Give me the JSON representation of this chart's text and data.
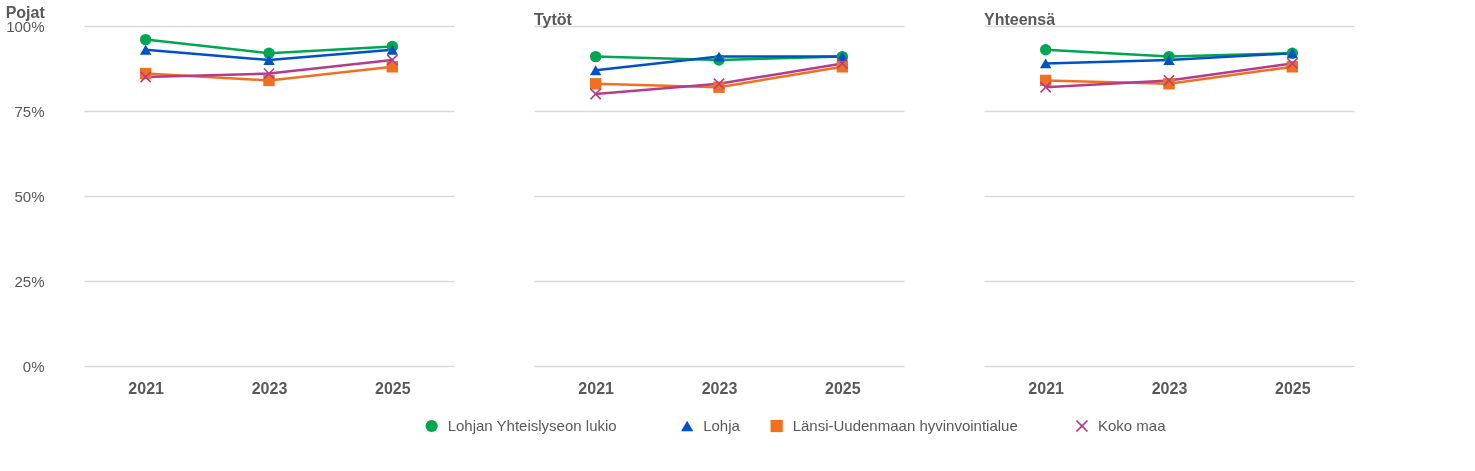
{
  "chart_data": [
    {
      "type": "line",
      "title": "Pojat",
      "categories": [
        "2021",
        "2023",
        "2025"
      ],
      "ylim": [
        0,
        100
      ],
      "yticks": [
        {
          "value": 0,
          "label": "0%"
        },
        {
          "value": 25,
          "label": "25%"
        },
        {
          "value": 50,
          "label": "50%"
        },
        {
          "value": 75,
          "label": "75%"
        },
        {
          "value": 100,
          "label": "100%"
        }
      ],
      "grid": "y",
      "legend": "bottom",
      "series": [
        {
          "name": "Lohjan Yhteislyseon lukio",
          "color": "#00a651",
          "marker": "circle",
          "values": [
            96,
            92,
            94
          ]
        },
        {
          "name": "Lohja",
          "color": "#0050c8",
          "marker": "triangle",
          "values": [
            93,
            90,
            93
          ]
        },
        {
          "name": "Länsi-Uudenmaan hyvinvointialue",
          "color": "#f07020",
          "marker": "square",
          "values": [
            86,
            84,
            88
          ]
        },
        {
          "name": "Koko maa",
          "color": "#b43c8c",
          "marker": "cross",
          "values": [
            85,
            86,
            90
          ]
        }
      ]
    },
    {
      "type": "line",
      "title": "Tytöt",
      "categories": [
        "2021",
        "2023",
        "2025"
      ],
      "ylim": [
        0,
        100
      ],
      "yticks": [
        0,
        25,
        50,
        75,
        100
      ],
      "grid": "y",
      "tick_labels": "x",
      "series": [
        {
          "name": "Lohjan Yhteislyseon lukio",
          "color": "#00a651",
          "marker": "circle",
          "values": [
            91,
            90,
            91
          ]
        },
        {
          "name": "Lohja",
          "color": "#0050c8",
          "marker": "triangle",
          "values": [
            87,
            91,
            91
          ]
        },
        {
          "name": "Länsi-Uudenmaan hyvinvointialue",
          "color": "#f07020",
          "marker": "square",
          "values": [
            83,
            82,
            88
          ]
        },
        {
          "name": "Koko maa",
          "color": "#b43c8c",
          "marker": "cross",
          "values": [
            80,
            83,
            89
          ]
        }
      ]
    },
    {
      "type": "line",
      "title": "Yhteensä",
      "categories": [
        "2021",
        "2023",
        "2025"
      ],
      "ylim": [
        0,
        100
      ],
      "yticks": [
        0,
        25,
        50,
        75,
        100
      ],
      "grid": "y",
      "tick_labels": "x",
      "series": [
        {
          "name": "Lohjan Yhteislyseon lukio",
          "color": "#00a651",
          "marker": "circle",
          "values": [
            93,
            91,
            92
          ]
        },
        {
          "name": "Lohja",
          "color": "#0050c8",
          "marker": "triangle",
          "values": [
            89,
            90,
            92
          ]
        },
        {
          "name": "Länsi-Uudenmaan hyvinvointialue",
          "color": "#f07020",
          "marker": "square",
          "values": [
            84,
            83,
            88
          ]
        },
        {
          "name": "Koko maa",
          "color": "#b43c8c",
          "marker": "cross",
          "values": [
            82,
            84,
            89
          ]
        }
      ]
    }
  ]
}
